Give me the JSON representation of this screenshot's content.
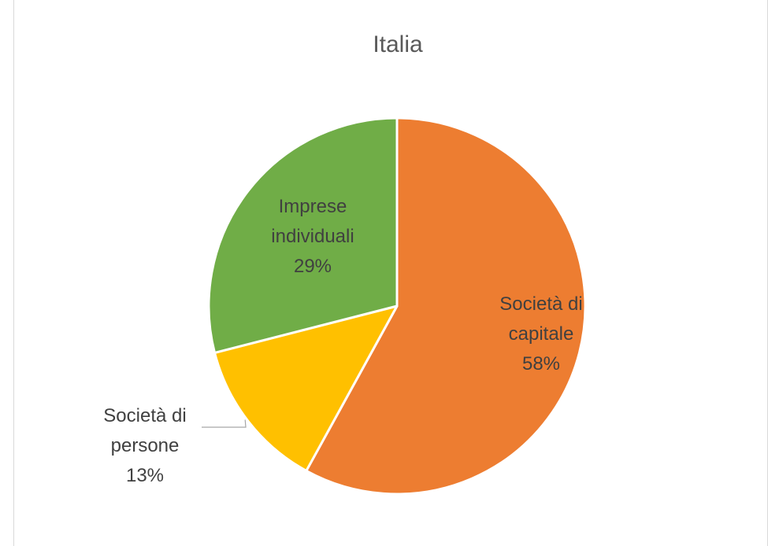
{
  "chart_data": {
    "type": "pie",
    "title": "Italia",
    "slices": [
      {
        "label_lines": [
          "Società di",
          "capitale"
        ],
        "value": 58,
        "percent_label": "58%",
        "color": "#ED7D31"
      },
      {
        "label_lines": [
          "Società di",
          "persone"
        ],
        "value": 13,
        "percent_label": "13%",
        "color": "#FFC000"
      },
      {
        "label_lines": [
          "Imprese",
          "individuali"
        ],
        "value": 29,
        "percent_label": "29%",
        "color": "#70AD47"
      }
    ],
    "start_angle": "12 o'clock",
    "direction": "clockwise"
  }
}
